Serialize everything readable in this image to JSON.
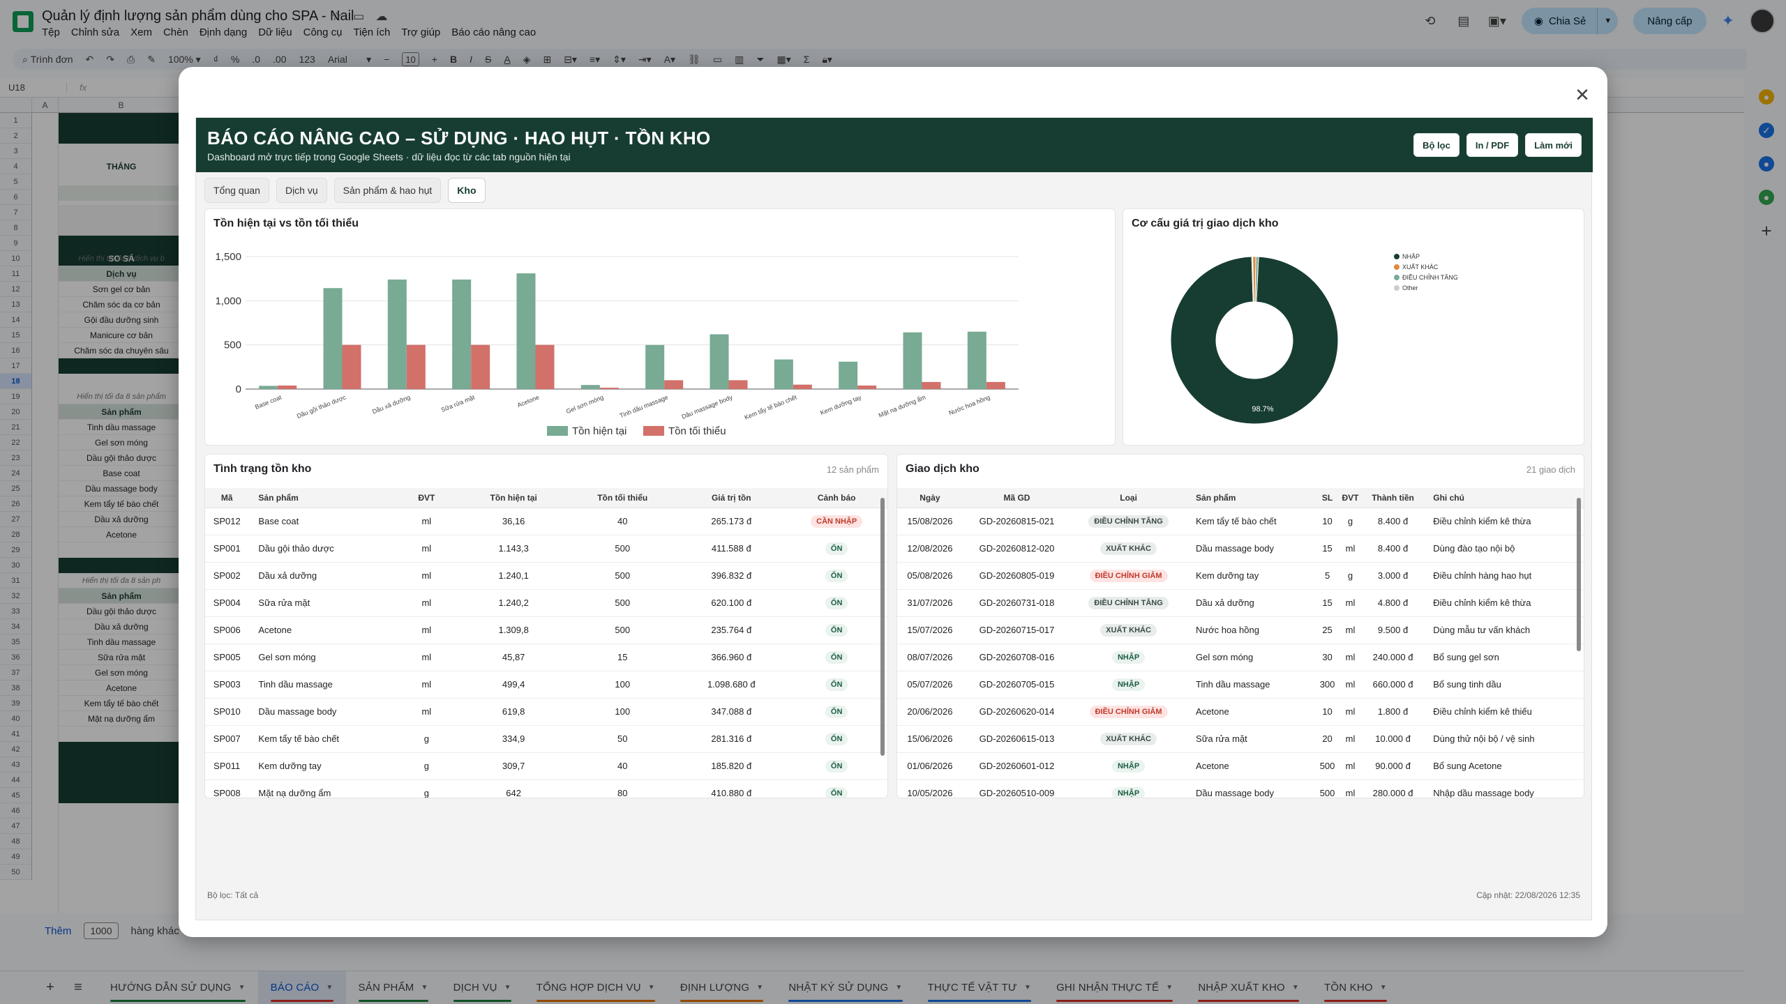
{
  "app": {
    "doc_title": "Quản lý định lượng sản phẩm dùng cho SPA - Nail",
    "menus": [
      "Tệp",
      "Chỉnh sửa",
      "Xem",
      "Chèn",
      "Định dạng",
      "Dữ liệu",
      "Công cụ",
      "Tiện ích",
      "Trợ giúp",
      "Báo cáo nâng cao"
    ],
    "share_label": "Chia Sẻ",
    "upgrade_label": "Nâng cấp"
  },
  "toolbar": {
    "search_label": "Trình đơn",
    "zoom": "100%",
    "currency": "₫",
    "percent": "%",
    "dec_dec": ".0",
    "dec_inc": ".00",
    "num_fmt": "123",
    "font": "Arial",
    "font_size": "10"
  },
  "formula_bar": {
    "namebox": "U18",
    "fx": "fx"
  },
  "sheet": {
    "col_headers": [
      "A",
      "B"
    ],
    "row_numbers": [
      "1",
      "2",
      "3",
      "4",
      "5",
      "6",
      "7",
      "8",
      "9",
      "10",
      "11",
      "12",
      "13",
      "14",
      "15",
      "16",
      "17",
      "18",
      "19",
      "20",
      "21",
      "22",
      "23",
      "24",
      "25",
      "26",
      "27",
      "28",
      "29",
      "30",
      "31",
      "32",
      "33",
      "34",
      "35",
      "36",
      "37",
      "38",
      "39",
      "40",
      "41",
      "42",
      "43",
      "44",
      "45",
      "46",
      "47",
      "48",
      "49",
      "50"
    ],
    "selected_row": "18",
    "header_thang": "THÁNG",
    "so_sanh": "SO SÁ",
    "block1_note": "Hiển thị tối đa 5 dịch vụ b",
    "block1_head": "Dịch vụ",
    "block1_items": [
      "Sơn gel cơ bản",
      "Chăm sóc da cơ bản",
      "Gội đầu dưỡng sinh",
      "Manicure cơ bản",
      "Chăm sóc da chuyên sâu"
    ],
    "block2_note": "Hiển thị tối đa 8 sản phẩm",
    "block2_head": "Sản phẩm",
    "block2_items": [
      "Tinh dầu massage",
      "Gel sơn móng",
      "Dầu gội thảo dược",
      "Base coat",
      "Dầu massage body",
      "Kem tẩy tế bào chết",
      "Dầu xả dưỡng",
      "Acetone"
    ],
    "block3_note": "Hiển thị tối đa 8 sản ph",
    "block3_head": "Sản phẩm",
    "block3_items": [
      "Dầu gội thảo dược",
      "Dầu xả dưỡng",
      "Tinh dầu massage",
      "Sữa rửa mặt",
      "Gel sơn móng",
      "Acetone",
      "Kem tẩy tế bào chết",
      "Mặt nạ dưỡng ẩm"
    ],
    "add_label": "Thêm",
    "add_count": "1000",
    "add_suffix": "hàng khác ở cuối trang"
  },
  "sheet_tabs": [
    {
      "label": "HƯỚNG DẪN SỬ DỤNG",
      "color": "#188038",
      "active": false
    },
    {
      "label": "BÁO CÁO",
      "color": "#d93025",
      "active": true
    },
    {
      "label": "SẢN PHẨM",
      "color": "#188038",
      "active": false
    },
    {
      "label": "DỊCH VỤ",
      "color": "#188038",
      "active": false
    },
    {
      "label": "TỔNG HỢP DỊCH VỤ",
      "color": "#e37400",
      "active": false
    },
    {
      "label": "ĐỊNH LƯỢNG",
      "color": "#e37400",
      "active": false
    },
    {
      "label": "NHẬT KÝ SỬ DỤNG",
      "color": "#1a73e8",
      "active": false
    },
    {
      "label": "THỰC TẾ VẬT TƯ",
      "color": "#1a73e8",
      "active": false
    },
    {
      "label": "GHI NHẬN THỰC TẾ",
      "color": "#d93025",
      "active": false
    },
    {
      "label": "NHẬP XUẤT KHO",
      "color": "#d93025",
      "active": false
    },
    {
      "label": "TỒN KHO",
      "color": "#d93025",
      "active": false
    }
  ],
  "dashboard": {
    "title": "BÁO CÁO NÂNG CAO – SỬ DỤNG · HAO HỤT · TỒN KHO",
    "subtitle": "Dashboard mở trực tiếp trong Google Sheets · dữ liệu đọc từ các tab nguồn hiện tại",
    "btn_filter": "Bộ lọc",
    "btn_print": "In / PDF",
    "btn_refresh": "Làm mới",
    "tabs": [
      "Tổng quan",
      "Dịch vụ",
      "Sản phẩm & hao hụt",
      "Kho"
    ],
    "active_tab": "Kho",
    "footer_filter": "Bộ lọc: Tất cả",
    "footer_updated": "Cập nhật: 22/08/2026 12:35"
  },
  "chart_data": [
    {
      "type": "bar",
      "title": "Tồn hiện tại vs tồn tối thiểu",
      "categories": [
        "Base coat",
        "Dầu gội thảo dược",
        "Dầu xả dưỡng",
        "Sữa rửa mặt",
        "Acetone",
        "Gel sơn móng",
        "Tinh dầu massage",
        "Dầu massage body",
        "Kem tẩy tế bào chết",
        "Kem dưỡng tay",
        "Mặt nạ dưỡng ẩm",
        "Nước hoa hồng"
      ],
      "series": [
        {
          "name": "Tồn hiện tại",
          "color": "#78aa94",
          "values": [
            36,
            1143,
            1240,
            1240,
            1310,
            46,
            499,
            620,
            335,
            310,
            642,
            650
          ]
        },
        {
          "name": "Tồn tối thiểu",
          "color": "#d2706a",
          "values": [
            40,
            500,
            500,
            500,
            500,
            15,
            100,
            100,
            50,
            40,
            80,
            80
          ]
        }
      ],
      "yticks": [
        "0",
        "500",
        "1,000",
        "1,500"
      ],
      "ylim": [
        0,
        1500
      ],
      "legend": "bottom"
    },
    {
      "type": "pie",
      "title": "Cơ cấu giá trị giao dịch kho",
      "slices": [
        {
          "label": "NHẬP",
          "value": 98.7,
          "color": "#173d32"
        },
        {
          "label": "XUẤT KHÁC",
          "value": 0.6,
          "color": "#e08a3c"
        },
        {
          "label": "ĐIỀU CHỈNH TĂNG",
          "value": 0.5,
          "color": "#78aa94"
        },
        {
          "label": "Other",
          "value": 0.2,
          "color": "#cccccc"
        }
      ],
      "center_label": "98.7%",
      "legend": "right"
    }
  ],
  "stock_table": {
    "title": "Tình trạng tồn kho",
    "count": "12 sản phẩm",
    "headers": [
      "Mã",
      "Sản phẩm",
      "ĐVT",
      "Tồn hiện tại",
      "Tồn tối thiểu",
      "Giá trị tồn",
      "Cảnh báo"
    ],
    "rows": [
      [
        "SP012",
        "Base coat",
        "ml",
        "36,16",
        "40",
        "265.173 đ",
        "CẦN NHẬP"
      ],
      [
        "SP001",
        "Dầu gội thảo dược",
        "ml",
        "1.143,3",
        "500",
        "411.588 đ",
        "ỔN"
      ],
      [
        "SP002",
        "Dầu xả dưỡng",
        "ml",
        "1.240,1",
        "500",
        "396.832 đ",
        "ỔN"
      ],
      [
        "SP004",
        "Sữa rửa mặt",
        "ml",
        "1.240,2",
        "500",
        "620.100 đ",
        "ỔN"
      ],
      [
        "SP006",
        "Acetone",
        "ml",
        "1.309,8",
        "500",
        "235.764 đ",
        "ỔN"
      ],
      [
        "SP005",
        "Gel sơn móng",
        "ml",
        "45,87",
        "15",
        "366.960 đ",
        "ỔN"
      ],
      [
        "SP003",
        "Tinh dầu massage",
        "ml",
        "499,4",
        "100",
        "1.098.680 đ",
        "ỔN"
      ],
      [
        "SP010",
        "Dầu massage body",
        "ml",
        "619,8",
        "100",
        "347.088 đ",
        "ỔN"
      ],
      [
        "SP007",
        "Kem tẩy tế bào chết",
        "g",
        "334,9",
        "50",
        "281.316 đ",
        "ỔN"
      ],
      [
        "SP011",
        "Kem dưỡng tay",
        "g",
        "309,7",
        "40",
        "185.820 đ",
        "ỔN"
      ],
      [
        "SP008",
        "Mặt nạ dưỡng ẩm",
        "g",
        "642",
        "80",
        "410.880 đ",
        "ỔN"
      ]
    ]
  },
  "tx_table": {
    "title": "Giao dịch kho",
    "count": "21 giao dịch",
    "headers": [
      "Ngày",
      "Mã GD",
      "Loại",
      "Sản phẩm",
      "SL",
      "ĐVT",
      "Thành tiền",
      "Ghi chú"
    ],
    "rows": [
      [
        "15/08/2026",
        "GD-20260815-021",
        "ĐIỀU CHỈNH TĂNG",
        "Kem tẩy tế bào chết",
        "10",
        "g",
        "8.400 đ",
        "Điều chỉnh kiểm kê thừa"
      ],
      [
        "12/08/2026",
        "GD-20260812-020",
        "XUẤT KHÁC",
        "Dầu massage body",
        "15",
        "ml",
        "8.400 đ",
        "Dùng đào tạo nội bộ"
      ],
      [
        "05/08/2026",
        "GD-20260805-019",
        "ĐIỀU CHỈNH GIẢM",
        "Kem dưỡng tay",
        "5",
        "g",
        "3.000 đ",
        "Điều chỉnh hàng hao hụt"
      ],
      [
        "31/07/2026",
        "GD-20260731-018",
        "ĐIỀU CHỈNH TĂNG",
        "Dầu xả dưỡng",
        "15",
        "ml",
        "4.800 đ",
        "Điều chỉnh kiểm kê thừa"
      ],
      [
        "15/07/2026",
        "GD-20260715-017",
        "XUẤT KHÁC",
        "Nước hoa hồng",
        "25",
        "ml",
        "9.500 đ",
        "Dùng mẫu tư vấn khách"
      ],
      [
        "08/07/2026",
        "GD-20260708-016",
        "NHẬP",
        "Gel sơn móng",
        "30",
        "ml",
        "240.000 đ",
        "Bổ sung gel sơn"
      ],
      [
        "05/07/2026",
        "GD-20260705-015",
        "NHẬP",
        "Tinh dầu massage",
        "300",
        "ml",
        "660.000 đ",
        "Bổ sung tinh dầu"
      ],
      [
        "20/06/2026",
        "GD-20260620-014",
        "ĐIỀU CHỈNH GIẢM",
        "Acetone",
        "10",
        "ml",
        "1.800 đ",
        "Điều chỉnh kiểm kê thiếu"
      ],
      [
        "15/06/2026",
        "GD-20260615-013",
        "XUẤT KHÁC",
        "Sữa rửa mặt",
        "20",
        "ml",
        "10.000 đ",
        "Dùng thử nội bộ / vệ sinh"
      ],
      [
        "01/06/2026",
        "GD-20260601-012",
        "NHẬP",
        "Acetone",
        "500",
        "ml",
        "90.000 đ",
        "Bổ sung Acetone"
      ],
      [
        "10/05/2026",
        "GD-20260510-009",
        "NHẬP",
        "Dầu massage body",
        "500",
        "ml",
        "280.000 đ",
        "Nhập dầu massage body"
      ]
    ]
  }
}
